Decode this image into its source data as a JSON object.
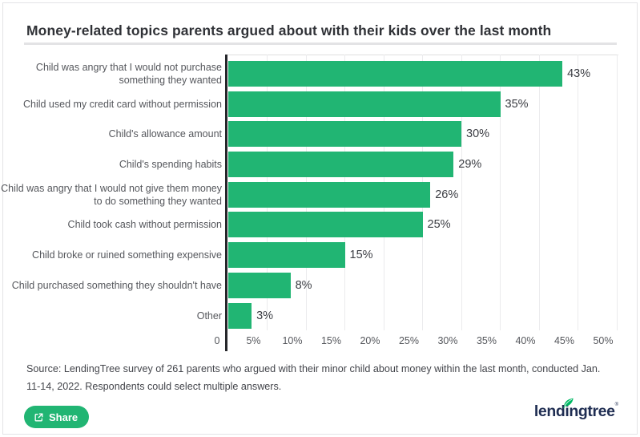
{
  "chart_data": {
    "type": "bar",
    "orientation": "horizontal",
    "title": "Money-related topics parents argued about with their kids over the last month",
    "categories": [
      "Child was angry that I would not purchase something they wanted",
      "Child used my credit card without permission",
      "Child's allowance amount",
      "Child's spending habits",
      "Child was angry that I would not give them money to do something they wanted",
      "Child took cash without permission",
      "Child broke or ruined something expensive",
      "Child purchased something they shouldn't have",
      "Other"
    ],
    "values": [
      43,
      35,
      30,
      29,
      26,
      25,
      15,
      8,
      3
    ],
    "value_labels": [
      "43%",
      "35%",
      "30%",
      "29%",
      "26%",
      "25%",
      "15%",
      "8%",
      "3%"
    ],
    "xlabel": "",
    "xlim": [
      0,
      50
    ],
    "x_zero_label": "0",
    "x_tick_labels": [
      "5%",
      "10%",
      "15%",
      "20%",
      "25%",
      "30%",
      "35%",
      "40%",
      "45%",
      "50%"
    ],
    "grid": true,
    "legend_position": "none",
    "bar_color": "#21B573"
  },
  "source": {
    "line1": "Source: LendingTree survey of 261 parents who argued with their minor child about money within the last month, conducted Jan.",
    "line2": "11-14, 2022. Respondents could select multiple answers."
  },
  "footer": {
    "share": {
      "label": "Share"
    },
    "logo": {
      "text": "lendingtree",
      "mark": "®"
    }
  },
  "colors": {
    "accent_green": "#21B573",
    "logo_navy": "#1F2D52",
    "leaf_green": "#00B964",
    "axis_line": "#26272B",
    "gridline": "#EBEBED"
  }
}
